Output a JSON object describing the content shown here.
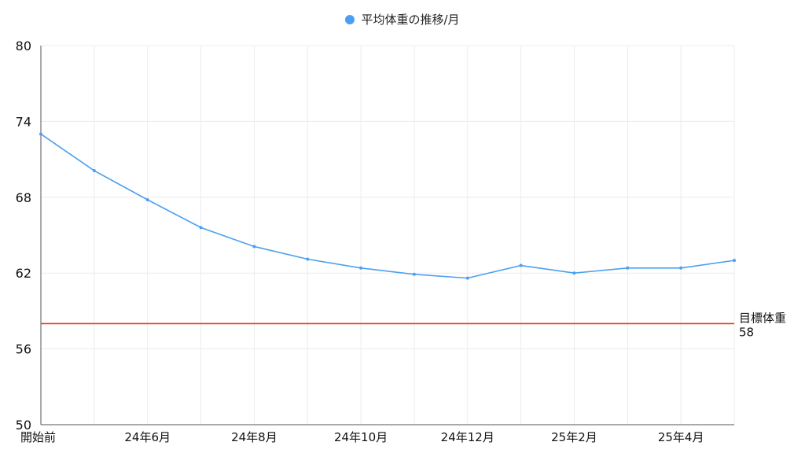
{
  "chart_data": {
    "type": "line",
    "legend": {
      "position": "top-center"
    },
    "categories": [
      "開始前",
      "",
      "24年6月",
      "",
      "24年8月",
      "",
      "24年10月",
      "",
      "24年12月",
      "",
      "25年2月",
      "",
      "25年4月",
      ""
    ],
    "xtick_labels": [
      "開始前",
      "24年6月",
      "24年8月",
      "24年10月",
      "24年12月",
      "25年2月",
      "25年4月"
    ],
    "series": [
      {
        "name": "平均体重の推移/月",
        "color": "#4c9ff0",
        "values": [
          73.0,
          70.1,
          67.8,
          65.6,
          64.1,
          63.1,
          62.4,
          61.9,
          61.6,
          62.6,
          62.0,
          62.4,
          62.4,
          63.0
        ]
      }
    ],
    "target_line": {
      "label": "目標体重",
      "value": 58,
      "value_label": "58",
      "color": "#e8401c"
    },
    "ylim": [
      50,
      80
    ],
    "yticks": [
      50,
      56,
      62,
      68,
      74,
      80
    ],
    "grid": true,
    "xlabel": "",
    "ylabel": ""
  }
}
